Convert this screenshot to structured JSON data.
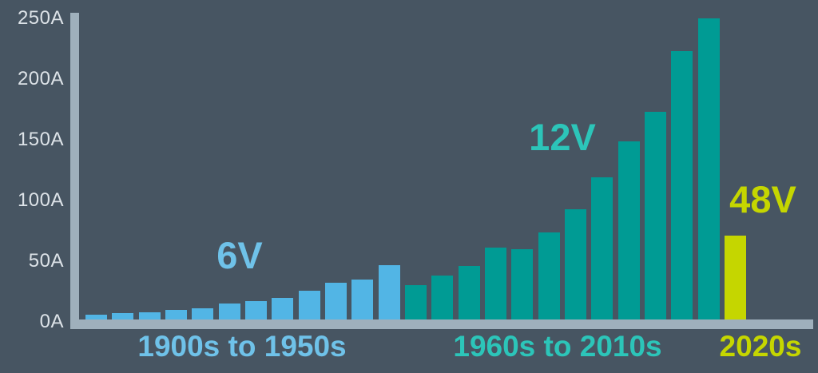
{
  "chart_data": {
    "type": "bar",
    "title": "",
    "xlabel": "",
    "ylabel": "",
    "unit": "A",
    "ylim": [
      0,
      250
    ],
    "grid": false,
    "legend": "none",
    "background_color": "#475562",
    "axis_color": "#9fb0bc",
    "tick_label_color": "#dde3e8",
    "ytick_labels": [
      "0A",
      "50A",
      "100A",
      "150A",
      "200A",
      "250A"
    ],
    "ytick_values": [
      0,
      50,
      100,
      150,
      200,
      250
    ],
    "groups": [
      {
        "label": "1900s to 1950s",
        "annotation": "6V",
        "bar_color": "#52b5e5",
        "label_color": "#6fc2e9",
        "values": [
          4,
          5,
          6,
          8,
          9,
          13,
          15,
          18,
          24,
          30,
          33,
          45
        ]
      },
      {
        "label": "1960s to 2010s",
        "annotation": "12V",
        "bar_color": "#009b94",
        "label_color": "#2cc5b9",
        "values": [
          28,
          36,
          44,
          59,
          58,
          72,
          91,
          117,
          147,
          171,
          221,
          248
        ]
      },
      {
        "label": "2020s",
        "annotation": "48V",
        "bar_color": "#c5d600",
        "label_color": "#c5d600",
        "values": [
          69
        ]
      }
    ]
  }
}
